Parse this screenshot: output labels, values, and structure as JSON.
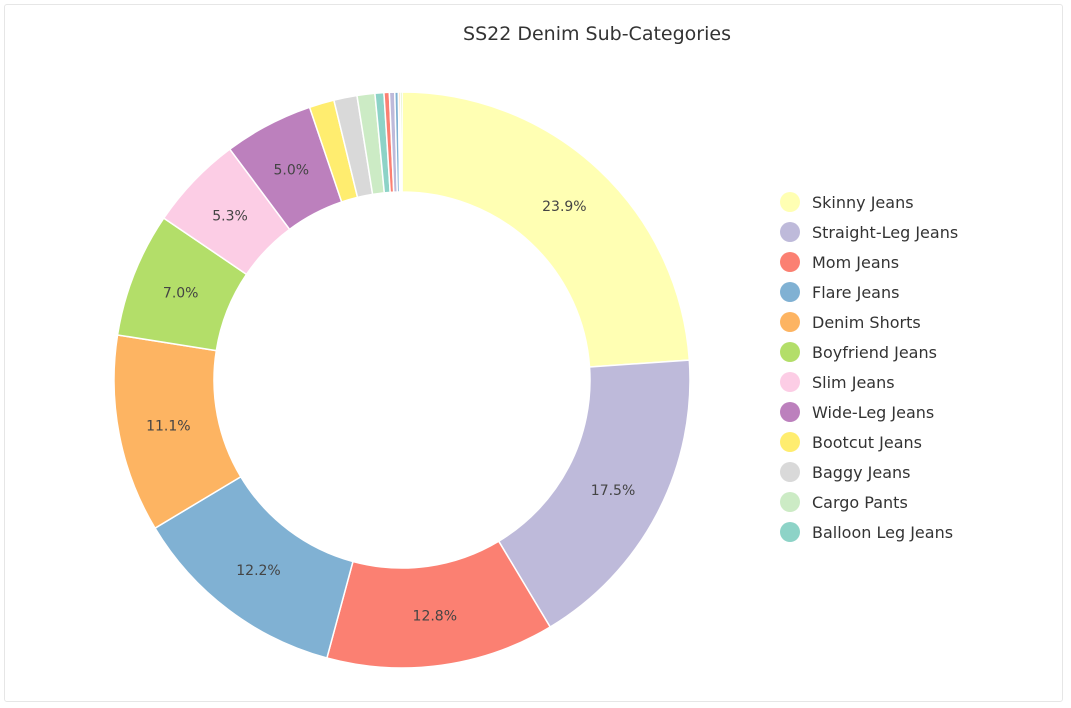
{
  "chart_data": {
    "type": "pie",
    "title": "SS22 Denim Sub-Categories",
    "legend_position": "right",
    "donut": true,
    "categories": [
      "Skinny Jeans",
      "Straight-Leg Jeans",
      "Mom Jeans",
      "Flare Jeans",
      "Denim Shorts",
      "Boyfriend Jeans",
      "Slim Jeans",
      "Wide-Leg Jeans",
      "Bootcut Jeans",
      "Baggy Jeans",
      "Cargo Pants",
      "Balloon Leg Jeans",
      "",
      "",
      "",
      "",
      ""
    ],
    "values": [
      23.9,
      17.5,
      12.8,
      12.2,
      11.1,
      7.0,
      5.3,
      5.0,
      1.4,
      1.3,
      1.0,
      0.5,
      0.3,
      0.3,
      0.2,
      0.1,
      0.1
    ],
    "data_labels": [
      "23.9%",
      "17.5%",
      "12.8%",
      "12.2%",
      "11.1%",
      "7.0%",
      "5.3%",
      "5.0%",
      "",
      "",
      "",
      "",
      "",
      "",
      "",
      "",
      ""
    ],
    "colors": [
      "#ffffb3",
      "#bebada",
      "#fb8072",
      "#80b1d3",
      "#fdb462",
      "#b3de69",
      "#fccde5",
      "#bc80bd",
      "#ffed6f",
      "#d9d9d9",
      "#ccebc5",
      "#8dd3c7",
      "#fb8072",
      "#bebada",
      "#80b1d3",
      "#fdb462",
      "#b3de69"
    ],
    "legend": [
      "Skinny Jeans",
      "Straight-Leg Jeans",
      "Mom Jeans",
      "Flare Jeans",
      "Denim Shorts",
      "Boyfriend Jeans",
      "Slim Jeans",
      "Wide-Leg Jeans",
      "Bootcut Jeans",
      "Baggy Jeans",
      "Cargo Pants",
      "Balloon Leg Jeans"
    ]
  }
}
